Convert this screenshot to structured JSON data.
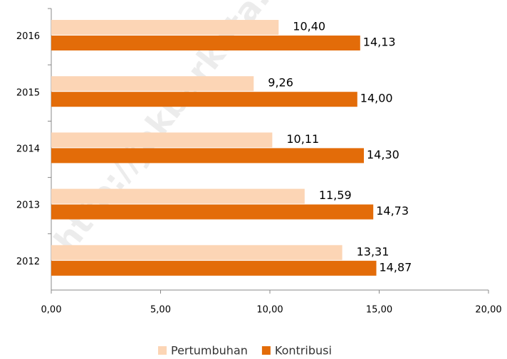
{
  "chart_data": {
    "type": "bar",
    "orientation": "horizontal",
    "watermark": "http://jakbarkota.",
    "categories": [
      "2016",
      "2015",
      "2014",
      "2013",
      "2012"
    ],
    "series": [
      {
        "name": "Pertumbuhan",
        "color": "#fcd5b5",
        "values": [
          10.4,
          9.26,
          10.11,
          11.59,
          13.31
        ],
        "value_labels": [
          "10,40",
          "9,26",
          "10,11",
          "11,59",
          "13,31"
        ]
      },
      {
        "name": "Kontribusi",
        "color": "#e36c09",
        "values": [
          14.13,
          14.0,
          14.3,
          14.73,
          14.87
        ],
        "value_labels": [
          "14,13",
          "14,00",
          "14,30",
          "14,73",
          "14,87"
        ]
      }
    ],
    "xlim": [
      0,
      20
    ],
    "xticks": [
      {
        "value": 0,
        "label": "0,00"
      },
      {
        "value": 5,
        "label": "5,00"
      },
      {
        "value": 10,
        "label": "10,00"
      },
      {
        "value": 15,
        "label": "15,00"
      },
      {
        "value": 20,
        "label": "20,00"
      }
    ],
    "legend": "bottom"
  }
}
